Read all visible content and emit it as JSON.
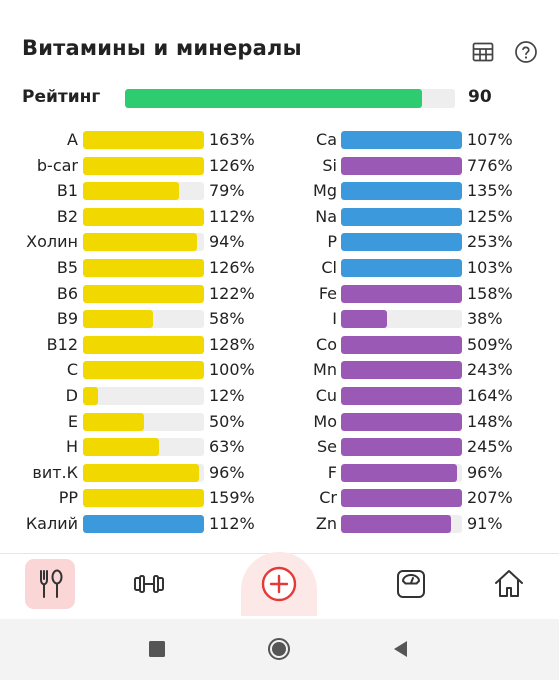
{
  "header": {
    "title": "Витамины и минералы"
  },
  "rating": {
    "label": "Рейтинг",
    "value": "90",
    "fraction": 0.9,
    "color": "#2ecc71"
  },
  "colors": {
    "vitamin": "#f1d900",
    "electrolyte": "#3b99dc",
    "mineral": "#9b59b6",
    "track": "#eeeeee"
  },
  "left_items": [
    {
      "label": "A",
      "pct": "163%",
      "fraction": 1.0,
      "color": "#f1d900"
    },
    {
      "label": "b-car",
      "pct": "126%",
      "fraction": 1.0,
      "color": "#f1d900"
    },
    {
      "label": "B1",
      "pct": "79%",
      "fraction": 0.79,
      "color": "#f1d900"
    },
    {
      "label": "B2",
      "pct": "112%",
      "fraction": 1.0,
      "color": "#f1d900"
    },
    {
      "label": "Холин",
      "pct": "94%",
      "fraction": 0.94,
      "color": "#f1d900"
    },
    {
      "label": "B5",
      "pct": "126%",
      "fraction": 1.0,
      "color": "#f1d900"
    },
    {
      "label": "B6",
      "pct": "122%",
      "fraction": 1.0,
      "color": "#f1d900"
    },
    {
      "label": "B9",
      "pct": "58%",
      "fraction": 0.58,
      "color": "#f1d900"
    },
    {
      "label": "B12",
      "pct": "128%",
      "fraction": 1.0,
      "color": "#f1d900"
    },
    {
      "label": "C",
      "pct": "100%",
      "fraction": 1.0,
      "color": "#f1d900"
    },
    {
      "label": "D",
      "pct": "12%",
      "fraction": 0.12,
      "color": "#f1d900"
    },
    {
      "label": "E",
      "pct": "50%",
      "fraction": 0.5,
      "color": "#f1d900"
    },
    {
      "label": "H",
      "pct": "63%",
      "fraction": 0.63,
      "color": "#f1d900"
    },
    {
      "label": "вит.К",
      "pct": "96%",
      "fraction": 0.96,
      "color": "#f1d900"
    },
    {
      "label": "PP",
      "pct": "159%",
      "fraction": 1.0,
      "color": "#f1d900"
    },
    {
      "label": "Калий",
      "pct": "112%",
      "fraction": 1.0,
      "color": "#3b99dc"
    }
  ],
  "right_items": [
    {
      "label": "Ca",
      "pct": "107%",
      "fraction": 1.0,
      "color": "#3b99dc"
    },
    {
      "label": "Si",
      "pct": "776%",
      "fraction": 1.0,
      "color": "#9b59b6"
    },
    {
      "label": "Mg",
      "pct": "135%",
      "fraction": 1.0,
      "color": "#3b99dc"
    },
    {
      "label": "Na",
      "pct": "125%",
      "fraction": 1.0,
      "color": "#3b99dc"
    },
    {
      "label": "P",
      "pct": "253%",
      "fraction": 1.0,
      "color": "#3b99dc"
    },
    {
      "label": "Cl",
      "pct": "103%",
      "fraction": 1.0,
      "color": "#3b99dc"
    },
    {
      "label": "Fe",
      "pct": "158%",
      "fraction": 1.0,
      "color": "#9b59b6"
    },
    {
      "label": "I",
      "pct": "38%",
      "fraction": 0.38,
      "color": "#9b59b6"
    },
    {
      "label": "Co",
      "pct": "509%",
      "fraction": 1.0,
      "color": "#9b59b6"
    },
    {
      "label": "Mn",
      "pct": "243%",
      "fraction": 1.0,
      "color": "#9b59b6"
    },
    {
      "label": "Cu",
      "pct": "164%",
      "fraction": 1.0,
      "color": "#9b59b6"
    },
    {
      "label": "Mo",
      "pct": "148%",
      "fraction": 1.0,
      "color": "#9b59b6"
    },
    {
      "label": "Se",
      "pct": "245%",
      "fraction": 1.0,
      "color": "#9b59b6"
    },
    {
      "label": "F",
      "pct": "96%",
      "fraction": 0.96,
      "color": "#9b59b6"
    },
    {
      "label": "Cr",
      "pct": "207%",
      "fraction": 1.0,
      "color": "#9b59b6"
    },
    {
      "label": "Zn",
      "pct": "91%",
      "fraction": 0.91,
      "color": "#9b59b6"
    }
  ],
  "nav": {
    "items": [
      {
        "icon": "fork-spoon-icon",
        "active": true
      },
      {
        "icon": "dumbbell-icon",
        "active": false
      },
      {
        "icon": "add-circle-icon",
        "active": false
      },
      {
        "icon": "scale-icon",
        "active": false
      },
      {
        "icon": "home-icon",
        "active": false
      }
    ],
    "accent": "#e53935"
  },
  "system_nav": [
    "recents-square-icon",
    "home-circle-icon",
    "back-triangle-icon"
  ]
}
